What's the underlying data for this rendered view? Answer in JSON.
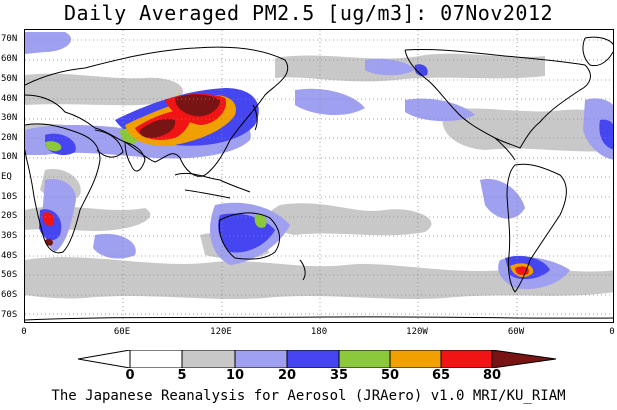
{
  "title": "Daily Averaged PM2.5 [ug/m3]: 07Nov2012",
  "footer": "The Japanese Reanalysis for Aerosol (JRAero) v1.0 MRI/KU_RIAM",
  "map": {
    "lat_labels": [
      "70N",
      "60N",
      "50N",
      "40N",
      "30N",
      "20N",
      "10N",
      "EQ",
      "10S",
      "20S",
      "30S",
      "40S",
      "50S",
      "60S",
      "70S"
    ],
    "lon_labels": [
      "0",
      "60E",
      "120E",
      "180",
      "120W",
      "60W",
      "0"
    ],
    "grid": "dotted"
  },
  "colorbar": {
    "levels": [
      "0",
      "5",
      "10",
      "20",
      "35",
      "50",
      "65",
      "80"
    ],
    "colors": [
      "#ffffff",
      "#c8c8c8",
      "#a0a0f0",
      "#4646f0",
      "#8cc83c",
      "#f0a000",
      "#f01414",
      "#781414"
    ]
  }
}
